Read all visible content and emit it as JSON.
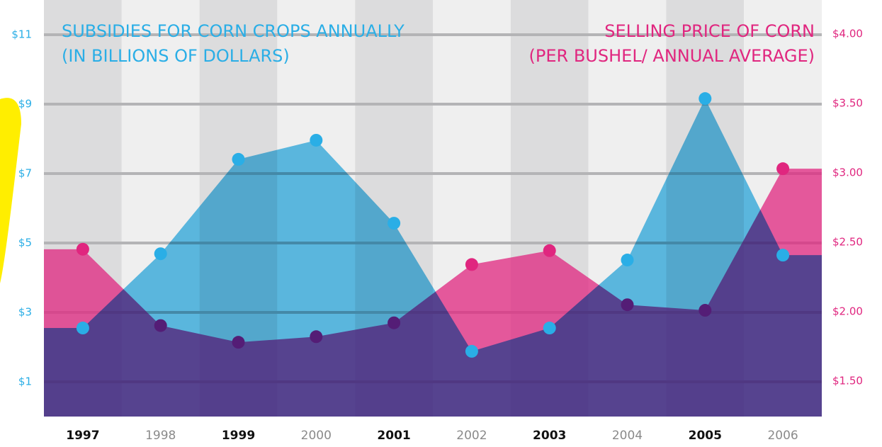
{
  "chart_data": {
    "type": "area",
    "categories": [
      "1997",
      "1998",
      "1999",
      "2000",
      "2001",
      "2002",
      "2003",
      "2004",
      "2005",
      "2006"
    ],
    "series": [
      {
        "name": "SELLING PRICE OF CORN",
        "subtitle": "(PER BUSHEL/ ANNUAL AVERAGE)",
        "color": "#e0267f",
        "axis": "y2",
        "values": [
          2.45,
          1.9,
          1.78,
          1.82,
          1.92,
          2.34,
          2.44,
          2.05,
          2.01,
          3.03
        ]
      },
      {
        "name": "SUBSIDIES FOR CORN CROPS ANNUALLY",
        "subtitle": "(IN BILLIONS OF DOLLARS)",
        "color": "#2aaee6",
        "axis": "y",
        "values": [
          2.55,
          4.69,
          7.41,
          7.96,
          5.57,
          1.88,
          2.55,
          4.51,
          9.16,
          4.65
        ]
      }
    ],
    "ylim": [
      0,
      12
    ],
    "yticks": [
      {
        "value": 1,
        "label": "$1"
      },
      {
        "value": 3,
        "label": "$3"
      },
      {
        "value": 5,
        "label": "$5"
      },
      {
        "value": 7,
        "label": "$7"
      },
      {
        "value": 9,
        "label": "$9"
      },
      {
        "value": 11,
        "label": "$11"
      }
    ],
    "y2lim": [
      1.245,
      4.245
    ],
    "y2ticks": [
      {
        "value": 1.5,
        "label": "$1.50"
      },
      {
        "value": 2,
        "label": "$2.00"
      },
      {
        "value": 2.5,
        "label": "$2.50"
      },
      {
        "value": 3,
        "label": "$3.00"
      },
      {
        "value": 3.5,
        "label": "$3.50"
      },
      {
        "value": 4,
        "label": "$4.00"
      }
    ],
    "grid": true
  }
}
